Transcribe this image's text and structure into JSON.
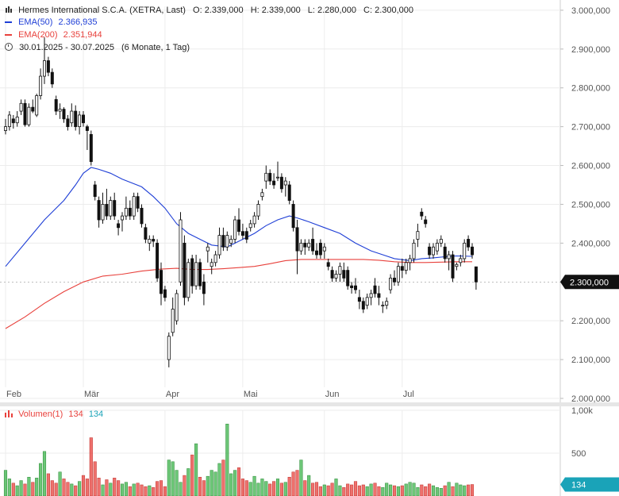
{
  "header": {
    "title": "Hermes International S.C.A. (XETRA, Last)",
    "ohlc": {
      "open": "O: 2.339,000",
      "high": "H: 2.339,000",
      "low": "L: 2.280,000",
      "close": "C: 2.300,000"
    },
    "ema50": {
      "label": "EMA(50)",
      "value": "2.366,935",
      "color": "#1f3fd6"
    },
    "ema200": {
      "label": "EMA(200)",
      "value": "2.351,944",
      "color": "#e8413c"
    },
    "range": "30.01.2025 - 30.07.2025",
    "period": "(6 Monate, 1 Tag)"
  },
  "volume_legend": {
    "label": "Volumen(1)",
    "value_red": "134",
    "value_blue": "134",
    "up_color": "#3cb44b",
    "down_color": "#e8413c"
  },
  "price_axis": {
    "ticks": [
      {
        "v": 3000,
        "label": "3.000,000"
      },
      {
        "v": 2900,
        "label": "2.900,000"
      },
      {
        "v": 2800,
        "label": "2.800,000"
      },
      {
        "v": 2700,
        "label": "2.700,000"
      },
      {
        "v": 2600,
        "label": "2.600,000"
      },
      {
        "v": 2500,
        "label": "2.500,000"
      },
      {
        "v": 2400,
        "label": "2.400,000"
      },
      {
        "v": 2200,
        "label": "2.200,000"
      },
      {
        "v": 2100,
        "label": "2.100,000"
      },
      {
        "v": 2000,
        "label": "2.000,000"
      }
    ],
    "last_price": {
      "v": 2300,
      "label": "2.300,000"
    }
  },
  "volume_axis": {
    "ticks": [
      {
        "v": 1000,
        "label": "1,00k"
      },
      {
        "v": 500,
        "label": "500"
      }
    ],
    "last_volume": {
      "v": 134,
      "label": "134",
      "color": "#1aa3b8"
    }
  },
  "time_axis": [
    {
      "i": 0,
      "label": "Feb"
    },
    {
      "i": 20,
      "label": "Mär"
    },
    {
      "i": 41,
      "label": "Apr"
    },
    {
      "i": 61,
      "label": "Mai"
    },
    {
      "i": 82,
      "label": "Jun"
    },
    {
      "i": 102,
      "label": "Jul"
    }
  ],
  "chart_data": {
    "type": "candlestick",
    "ylim": [
      2000,
      3010
    ],
    "vol_ylim": [
      0,
      1000
    ],
    "grid": true,
    "candles": [
      [
        2690,
        2720,
        2680,
        2700
      ],
      [
        2700,
        2740,
        2690,
        2730
      ],
      [
        2720,
        2730,
        2695,
        2710
      ],
      [
        2710,
        2740,
        2700,
        2725
      ],
      [
        2740,
        2770,
        2730,
        2760
      ],
      [
        2760,
        2770,
        2700,
        2705
      ],
      [
        2705,
        2760,
        2700,
        2750
      ],
      [
        2750,
        2770,
        2735,
        2740
      ],
      [
        2730,
        2785,
        2725,
        2780
      ],
      [
        2780,
        2850,
        2770,
        2830
      ],
      [
        2830,
        2930,
        2810,
        2870
      ],
      [
        2870,
        2880,
        2830,
        2840
      ],
      [
        2840,
        2850,
        2800,
        2810
      ],
      [
        2770,
        2780,
        2730,
        2740
      ],
      [
        2740,
        2760,
        2720,
        2745
      ],
      [
        2745,
        2750,
        2710,
        2720
      ],
      [
        2720,
        2730,
        2690,
        2700
      ],
      [
        2710,
        2760,
        2700,
        2740
      ],
      [
        2740,
        2755,
        2690,
        2700
      ],
      [
        2700,
        2740,
        2680,
        2730
      ],
      [
        2730,
        2740,
        2700,
        2710
      ],
      [
        2700,
        2705,
        2640,
        2690
      ],
      [
        2680,
        2690,
        2600,
        2610
      ],
      [
        2550,
        2560,
        2510,
        2520
      ],
      [
        2510,
        2520,
        2440,
        2460
      ],
      [
        2460,
        2530,
        2450,
        2500
      ],
      [
        2500,
        2540,
        2460,
        2470
      ],
      [
        2470,
        2520,
        2460,
        2510
      ],
      [
        2510,
        2530,
        2460,
        2470
      ],
      [
        2450,
        2460,
        2420,
        2440
      ],
      [
        2460,
        2480,
        2430,
        2470
      ],
      [
        2470,
        2520,
        2460,
        2490
      ],
      [
        2490,
        2510,
        2460,
        2470
      ],
      [
        2470,
        2530,
        2460,
        2520
      ],
      [
        2520,
        2530,
        2480,
        2490
      ],
      [
        2490,
        2500,
        2440,
        2450
      ],
      [
        2440,
        2450,
        2400,
        2410
      ],
      [
        2400,
        2420,
        2380,
        2410
      ],
      [
        2410,
        2420,
        2390,
        2405
      ],
      [
        2400,
        2410,
        2300,
        2310
      ],
      [
        2330,
        2350,
        2240,
        2270
      ],
      [
        2280,
        2290,
        2250,
        2260
      ],
      [
        2100,
        2170,
        2080,
        2160
      ],
      [
        2170,
        2260,
        2160,
        2230
      ],
      [
        2200,
        2280,
        2190,
        2270
      ],
      [
        2300,
        2480,
        2290,
        2460
      ],
      [
        2400,
        2420,
        2240,
        2260
      ],
      [
        2260,
        2360,
        2250,
        2350
      ],
      [
        2360,
        2370,
        2270,
        2290
      ],
      [
        2290,
        2370,
        2280,
        2350
      ],
      [
        2350,
        2360,
        2280,
        2290
      ],
      [
        2300,
        2320,
        2240,
        2270
      ],
      [
        2380,
        2400,
        2350,
        2390
      ],
      [
        2340,
        2360,
        2320,
        2350
      ],
      [
        2350,
        2380,
        2340,
        2370
      ],
      [
        2370,
        2440,
        2360,
        2420
      ],
      [
        2420,
        2440,
        2380,
        2390
      ],
      [
        2390,
        2430,
        2380,
        2420
      ],
      [
        2400,
        2420,
        2390,
        2410
      ],
      [
        2410,
        2470,
        2400,
        2460
      ],
      [
        2460,
        2490,
        2420,
        2430
      ],
      [
        2430,
        2450,
        2410,
        2420
      ],
      [
        2430,
        2440,
        2400,
        2410
      ],
      [
        2440,
        2460,
        2430,
        2450
      ],
      [
        2450,
        2480,
        2440,
        2470
      ],
      [
        2470,
        2510,
        2460,
        2500
      ],
      [
        2520,
        2540,
        2510,
        2530
      ],
      [
        2560,
        2600,
        2540,
        2580
      ],
      [
        2580,
        2590,
        2550,
        2560
      ],
      [
        2560,
        2580,
        2540,
        2550
      ],
      [
        2570,
        2610,
        2560,
        2570
      ],
      [
        2570,
        2580,
        2530,
        2540
      ],
      [
        2550,
        2570,
        2520,
        2560
      ],
      [
        2550,
        2560,
        2500,
        2510
      ],
      [
        2500,
        2510,
        2430,
        2440
      ],
      [
        2440,
        2460,
        2320,
        2380
      ],
      [
        2380,
        2410,
        2370,
        2400
      ],
      [
        2400,
        2410,
        2370,
        2390
      ],
      [
        2390,
        2410,
        2380,
        2400
      ],
      [
        2410,
        2440,
        2370,
        2380
      ],
      [
        2380,
        2400,
        2360,
        2370
      ],
      [
        2400,
        2410,
        2360,
        2370
      ],
      [
        2380,
        2400,
        2360,
        2390
      ],
      [
        2350,
        2360,
        2330,
        2340
      ],
      [
        2330,
        2340,
        2300,
        2310
      ],
      [
        2310,
        2330,
        2300,
        2320
      ],
      [
        2320,
        2350,
        2300,
        2340
      ],
      [
        2330,
        2350,
        2300,
        2310
      ],
      [
        2330,
        2340,
        2280,
        2290
      ],
      [
        2290,
        2300,
        2270,
        2285
      ],
      [
        2290,
        2310,
        2270,
        2280
      ],
      [
        2260,
        2280,
        2230,
        2250
      ],
      [
        2250,
        2260,
        2220,
        2230
      ],
      [
        2240,
        2270,
        2230,
        2260
      ],
      [
        2260,
        2280,
        2240,
        2270
      ],
      [
        2290,
        2310,
        2260,
        2270
      ],
      [
        2270,
        2290,
        2240,
        2260
      ],
      [
        2240,
        2250,
        2220,
        2240
      ],
      [
        2240,
        2260,
        2230,
        2250
      ],
      [
        2280,
        2320,
        2270,
        2310
      ],
      [
        2310,
        2330,
        2290,
        2300
      ],
      [
        2300,
        2350,
        2290,
        2340
      ],
      [
        2340,
        2360,
        2310,
        2330
      ],
      [
        2330,
        2360,
        2320,
        2350
      ],
      [
        2350,
        2370,
        2330,
        2360
      ],
      [
        2360,
        2410,
        2350,
        2400
      ],
      [
        2410,
        2450,
        2390,
        2430
      ],
      [
        2480,
        2490,
        2460,
        2470
      ],
      [
        2460,
        2470,
        2440,
        2450
      ],
      [
        2390,
        2400,
        2360,
        2370
      ],
      [
        2370,
        2400,
        2360,
        2390
      ],
      [
        2380,
        2410,
        2370,
        2400
      ],
      [
        2400,
        2420,
        2390,
        2410
      ],
      [
        2390,
        2400,
        2350,
        2360
      ],
      [
        2360,
        2380,
        2330,
        2370
      ],
      [
        2370,
        2380,
        2300,
        2310
      ],
      [
        2340,
        2350,
        2330,
        2345
      ],
      [
        2350,
        2370,
        2340,
        2360
      ],
      [
        2360,
        2410,
        2350,
        2400
      ],
      [
        2410,
        2420,
        2380,
        2390
      ],
      [
        2390,
        2400,
        2360,
        2370
      ],
      [
        2339,
        2339,
        2280,
        2300
      ]
    ],
    "ema50": [
      [
        0,
        2340
      ],
      [
        5,
        2400
      ],
      [
        10,
        2460
      ],
      [
        15,
        2510
      ],
      [
        18,
        2550
      ],
      [
        20,
        2580
      ],
      [
        22,
        2595
      ],
      [
        24,
        2590
      ],
      [
        27,
        2580
      ],
      [
        30,
        2565
      ],
      [
        35,
        2545
      ],
      [
        38,
        2520
      ],
      [
        41,
        2490
      ],
      [
        44,
        2450
      ],
      [
        47,
        2425
      ],
      [
        50,
        2410
      ],
      [
        53,
        2395
      ],
      [
        57,
        2390
      ],
      [
        59,
        2400
      ],
      [
        61,
        2410
      ],
      [
        64,
        2425
      ],
      [
        67,
        2445
      ],
      [
        70,
        2460
      ],
      [
        73,
        2470
      ],
      [
        75,
        2465
      ],
      [
        78,
        2455
      ],
      [
        82,
        2440
      ],
      [
        86,
        2425
      ],
      [
        90,
        2400
      ],
      [
        94,
        2380
      ],
      [
        97,
        2370
      ],
      [
        100,
        2360
      ],
      [
        104,
        2355
      ],
      [
        107,
        2360
      ],
      [
        110,
        2362
      ],
      [
        113,
        2365
      ],
      [
        116,
        2367
      ],
      [
        120,
        2366
      ]
    ],
    "ema200": [
      [
        0,
        2180
      ],
      [
        5,
        2210
      ],
      [
        10,
        2245
      ],
      [
        15,
        2275
      ],
      [
        20,
        2300
      ],
      [
        25,
        2315
      ],
      [
        30,
        2320
      ],
      [
        35,
        2328
      ],
      [
        40,
        2333
      ],
      [
        44,
        2335
      ],
      [
        48,
        2332
      ],
      [
        52,
        2332
      ],
      [
        56,
        2334
      ],
      [
        60,
        2337
      ],
      [
        64,
        2340
      ],
      [
        68,
        2347
      ],
      [
        72,
        2355
      ],
      [
        76,
        2358
      ],
      [
        80,
        2358
      ],
      [
        84,
        2358
      ],
      [
        88,
        2358
      ],
      [
        92,
        2358
      ],
      [
        96,
        2356
      ],
      [
        100,
        2352
      ],
      [
        104,
        2350
      ],
      [
        108,
        2350
      ],
      [
        112,
        2351
      ],
      [
        116,
        2352
      ],
      [
        120,
        2352
      ]
    ],
    "volumes": [
      300,
      200,
      150,
      120,
      180,
      140,
      220,
      160,
      210,
      380,
      520,
      260,
      180,
      150,
      280,
      200,
      160,
      140,
      120,
      170,
      240,
      200,
      680,
      400,
      210,
      130,
      190,
      150,
      210,
      180,
      140,
      160,
      110,
      140,
      150,
      130,
      110,
      120,
      100,
      170,
      180,
      110,
      420,
      400,
      300,
      160,
      240,
      320,
      480,
      610,
      220,
      180,
      230,
      300,
      280,
      380,
      420,
      840,
      260,
      300,
      330,
      200,
      180,
      160,
      230,
      150,
      200,
      170,
      140,
      170,
      200,
      150,
      160,
      220,
      280,
      300,
      420,
      180,
      240,
      150,
      160,
      110,
      130,
      120,
      150,
      200,
      120,
      100,
      140,
      130,
      170,
      120,
      130,
      110,
      140,
      150,
      110,
      100,
      150,
      130,
      120,
      110,
      120,
      140,
      160,
      150,
      100,
      130,
      110,
      140,
      120,
      100,
      90,
      120,
      160,
      110,
      150,
      130,
      120,
      130,
      134
    ]
  }
}
